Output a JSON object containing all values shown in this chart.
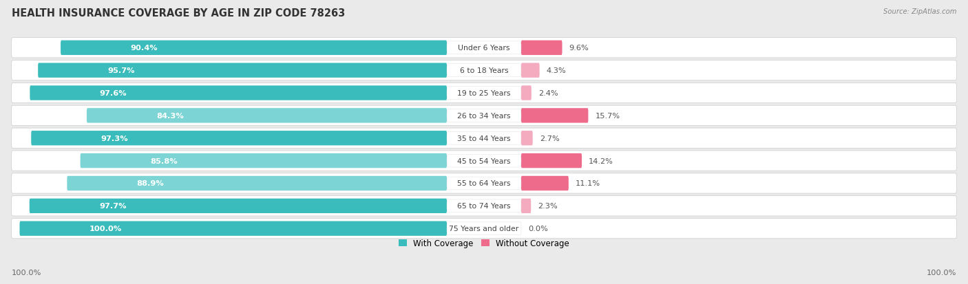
{
  "title": "HEALTH INSURANCE COVERAGE BY AGE IN ZIP CODE 78263",
  "source": "Source: ZipAtlas.com",
  "categories": [
    "Under 6 Years",
    "6 to 18 Years",
    "19 to 25 Years",
    "26 to 34 Years",
    "35 to 44 Years",
    "45 to 54 Years",
    "55 to 64 Years",
    "65 to 74 Years",
    "75 Years and older"
  ],
  "with_coverage": [
    90.4,
    95.7,
    97.6,
    84.3,
    97.3,
    85.8,
    88.9,
    97.7,
    100.0
  ],
  "without_coverage": [
    9.6,
    4.3,
    2.4,
    15.7,
    2.7,
    14.2,
    11.1,
    2.3,
    0.0
  ],
  "with_coverage_labels": [
    "90.4%",
    "95.7%",
    "97.6%",
    "84.3%",
    "97.3%",
    "85.8%",
    "88.9%",
    "97.7%",
    "100.0%"
  ],
  "without_coverage_labels": [
    "9.6%",
    "4.3%",
    "2.4%",
    "15.7%",
    "2.7%",
    "14.2%",
    "11.1%",
    "2.3%",
    "0.0%"
  ],
  "color_with_dark": "#3BBCBC",
  "color_with_light": "#7DD4D4",
  "color_without_strong": "#EE6B8B",
  "color_without_light": "#F4AABF",
  "background_color": "#EAEAEA",
  "bar_background": "#FFFFFF",
  "row_bg_color": "#E8E8E8",
  "title_fontsize": 10.5,
  "label_fontsize": 8.5,
  "bar_height": 0.65,
  "legend_label_with": "With Coverage",
  "legend_label_without": "Without Coverage",
  "strong_threshold": 9.0
}
